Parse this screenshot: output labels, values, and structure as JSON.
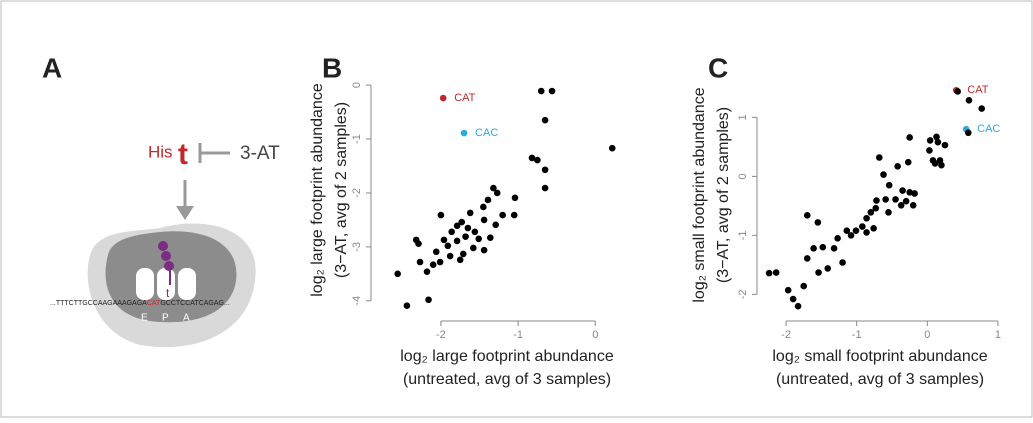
{
  "panels": [
    "A",
    "B",
    "C"
  ],
  "diagram": {
    "his": "His",
    "trna": "t",
    "inhibitor": "3-AT",
    "trna_small": "t",
    "seq_before": "...TTTCTTGCCAAGAAAGAGA",
    "codon": "CAT",
    "seq_after": "GCCTCCATCAGAG...",
    "sites": [
      "E",
      "P",
      "A"
    ]
  },
  "chart_data": [
    {
      "type": "scatter",
      "xlabel": [
        "log₂ large footprint abundance",
        "(untreated, avg of 3 samples)"
      ],
      "ylabel": [
        "log₂ large footprint abundance",
        "(3−AT, avg of 2 samples)"
      ],
      "xlim": [
        -2.75,
        0.45
      ],
      "ylim": [
        -4.3,
        0.15
      ],
      "xticks": [
        -2,
        -1,
        0
      ],
      "yticks": [
        0,
        -1,
        -2,
        -3,
        -4
      ],
      "series": [
        {
          "name": "CAT",
          "color": "#c0282d",
          "x": [
            -1.97
          ],
          "values": [
            -0.24
          ]
        },
        {
          "name": "CAC",
          "color": "#29abe2",
          "x": [
            -1.7
          ],
          "values": [
            -0.89
          ]
        },
        {
          "color": "#000000",
          "x": [
            -0.7,
            -0.56,
            -0.65,
            0.22,
            -0.82,
            -0.75,
            -0.65,
            -0.65,
            -1.32,
            -1.27,
            -1.04,
            -1.39,
            -1.45,
            -2.0,
            -1.62,
            -1.05,
            -1.73,
            -1.79,
            -1.44,
            -1.65,
            -1.56,
            -1.86,
            -1.96,
            -1.79,
            -1.68,
            -1.51,
            -1.36,
            -1.44,
            -1.58,
            -1.71,
            -1.88,
            -2.06,
            -2.29,
            -2.32,
            -2.1,
            -2.27,
            -2.01,
            -1.75,
            -1.91,
            -2.18,
            -2.56,
            -2.44,
            -2.16,
            -1.29,
            -1.2
          ],
          "values": [
            -0.11,
            -0.11,
            -0.65,
            -1.17,
            -1.35,
            -1.39,
            -1.57,
            -1.91,
            -1.91,
            -2.0,
            -2.09,
            -2.13,
            -2.26,
            -2.41,
            -2.37,
            -2.41,
            -2.54,
            -2.61,
            -2.5,
            -2.65,
            -2.72,
            -2.72,
            -2.87,
            -2.89,
            -2.81,
            -2.85,
            -2.83,
            -3.06,
            -3.02,
            -3.13,
            -3.17,
            -3.09,
            -2.94,
            -2.87,
            -3.33,
            -3.28,
            -3.28,
            -3.24,
            -2.98,
            -3.46,
            -3.5,
            -4.09,
            -3.98,
            -2.59,
            -2.41
          ]
        }
      ]
    },
    {
      "type": "scatter",
      "xlabel": [
        "log₂ small footprint abundance",
        "(untreated, avg of 3 samples)"
      ],
      "ylabel": [
        "log₂ small footprint abundance",
        "(3−AT, avg of 2 samples)"
      ],
      "xlim": [
        -2.27,
        1.1
      ],
      "ylim": [
        -2.35,
        1.6
      ],
      "xticks": [
        -2,
        -1,
        0,
        1
      ],
      "yticks": [
        1,
        0,
        -1,
        -2
      ],
      "series": [
        {
          "name": "CAT",
          "color": "#c0282d",
          "x": [
            0.41
          ],
          "values": [
            1.46
          ]
        },
        {
          "name": "CAC",
          "color": "#29abe2",
          "x": [
            0.55
          ],
          "values": [
            0.8
          ]
        },
        {
          "color": "#000000",
          "x": [
            0.43,
            0.59,
            0.77,
            0.58,
            0.13,
            0.04,
            0.15,
            0.25,
            -0.25,
            0.03,
            0.18,
            0.11,
            0.2,
            0.08,
            -0.68,
            -0.27,
            -0.42,
            -0.62,
            -0.54,
            -0.35,
            -0.25,
            -0.45,
            -0.59,
            -0.72,
            -0.73,
            -0.8,
            -0.86,
            -0.92,
            -1.01,
            -1.08,
            -0.86,
            -0.76,
            -0.55,
            -0.3,
            -0.18,
            -0.2,
            -0.37,
            -1.7,
            -1.55,
            -1.48,
            -1.61,
            -1.32,
            -1.27,
            -1.2,
            -1.41,
            -1.54,
            -1.7,
            -1.75,
            -2.24,
            -2.14,
            -1.97,
            -1.9,
            -1.83,
            -1.14
          ],
          "values": [
            1.44,
            1.29,
            1.15,
            0.74,
            0.67,
            0.61,
            0.58,
            0.53,
            0.66,
            0.44,
            0.27,
            0.22,
            0.19,
            0.27,
            0.32,
            0.24,
            0.17,
            0.03,
            -0.15,
            -0.24,
            -0.27,
            -0.39,
            -0.39,
            -0.41,
            -0.54,
            -0.61,
            -0.71,
            -0.85,
            -0.92,
            -1.0,
            -0.95,
            -0.88,
            -0.61,
            -0.42,
            -0.29,
            -0.49,
            -0.49,
            -0.66,
            -0.78,
            -1.2,
            -1.22,
            -1.22,
            -1.05,
            -1.46,
            -1.56,
            -1.63,
            -1.39,
            -1.86,
            -1.64,
            -1.63,
            -1.93,
            -2.08,
            -2.2,
            -0.92
          ]
        }
      ]
    }
  ]
}
